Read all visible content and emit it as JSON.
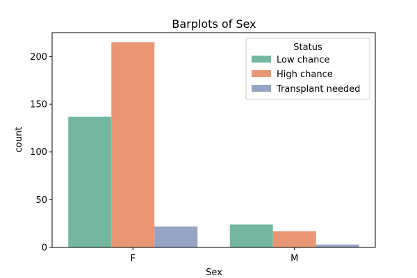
{
  "chart_data": {
    "type": "bar",
    "title": "Barplots of Sex",
    "xlabel": "Sex",
    "ylabel": "count",
    "categories": [
      "F",
      "M"
    ],
    "ylim": [
      0,
      225
    ],
    "yticks": [
      0,
      50,
      100,
      150,
      200
    ],
    "series": [
      {
        "name": "Low chance",
        "values": [
          137,
          24
        ],
        "color": "#73b7a1"
      },
      {
        "name": "High chance",
        "values": [
          215,
          17
        ],
        "color": "#e99675"
      },
      {
        "name": "Transplant needed",
        "values": [
          22,
          3
        ],
        "color": "#95a4c5"
      }
    ],
    "legend": {
      "title": "Status",
      "position": "top-right"
    },
    "grid": false
  }
}
